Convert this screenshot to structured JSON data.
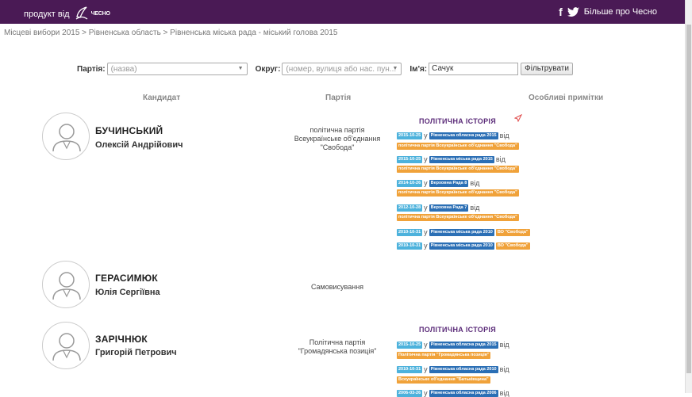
{
  "topbar": {
    "product_label": "продукт від",
    "logo_text_1": "ЧЕСНО",
    "logo_text_2": "",
    "link_label": "Більше про Чесно"
  },
  "breadcrumb": "Місцеві вибори 2015 > Рівненська область > Рівненська міська рада - міський голова 2015",
  "filter": {
    "party_label": "Партія:",
    "party_placeholder": "(назва)",
    "district_label": "Округ:",
    "district_placeholder": "(номер, вулиця або нас. пун...",
    "name_label": "Ім'я:",
    "name_value": "Сачук",
    "button": "Фільтрувати"
  },
  "columns": {
    "candidate": "Кандидат",
    "party": "Партія",
    "notes": "Особливі примітки"
  },
  "history_title": "ПОЛІТИЧНА ІСТОРІЯ",
  "candidates": [
    {
      "last": "БУЧИНСЬКИЙ",
      "first": "Олексій Андрійович",
      "party": "політична партія Всеукраїнське об'єднання \"Свобода\"",
      "history": [
        {
          "date": "2015-10-25",
          "prep": "у",
          "body": "Рівненська обласна рада 2015",
          "suffix": "від",
          "party": "політична партія Всеукраїнське об'єднання \"Свобода\""
        },
        {
          "date": "2015-10-25",
          "prep": "у",
          "body": "Рівненська міська рада 2015",
          "suffix": "від",
          "party": "політична партія Всеукраїнське об'єднання \"Свобода\""
        },
        {
          "date": "2014-10-26",
          "prep": "у",
          "body": "Верховна Рада 8",
          "suffix": "від",
          "party": "політична партія Всеукраїнське об'єднання \"Свобода\""
        },
        {
          "date": "2012-10-28",
          "prep": "у",
          "body": "Верховна Рада 7",
          "suffix": "від",
          "party": "політична партія Всеукраїнське об'єднання \"Свобода\""
        },
        {
          "date": "2010-10-31",
          "prep": "у",
          "body": "Рівненська міська рада 2010",
          "suffix": "",
          "party": "ВО \"Свобода\""
        },
        {
          "date": "2010-10-31",
          "prep": "у",
          "body": "Рівненська міська рада 2010",
          "suffix": "",
          "party": "ВО \"Свобода\""
        }
      ]
    },
    {
      "last": "ГЕРАСИМЮК",
      "first": "Юлія Сергіївна",
      "party": "Самовисування",
      "history": []
    },
    {
      "last": "ЗАРІЧНЮК",
      "first": "Григорій Петрович",
      "party": "Політична партія \"Громадянська позиція\"",
      "history": [
        {
          "date": "2015-10-25",
          "prep": "у",
          "body": "Рівненська обласна рада 2015",
          "suffix": "від",
          "party": "Політична партія \"Громадянська позиція\""
        },
        {
          "date": "2010-10-31",
          "prep": "у",
          "body": "Рівненська обласна рада 2010",
          "suffix": "від",
          "party": "Всеукраїнське об'єднання \"Батьківщина\""
        },
        {
          "date": "2006-03-26",
          "prep": "у",
          "body": "Рівненська обласна рада 2006",
          "suffix": "від",
          "party": ""
        }
      ]
    }
  ]
}
